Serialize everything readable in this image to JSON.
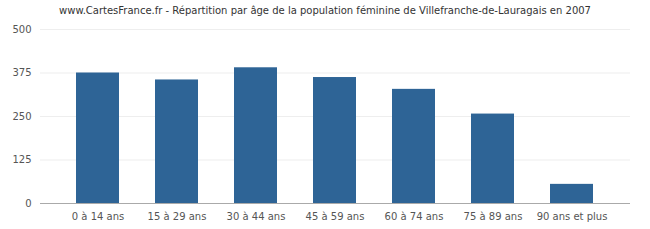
{
  "chart_data": {
    "type": "bar",
    "title": "www.CartesFrance.fr - Répartition par âge de la population féminine de Villefranche-de-Lauragais en 2007",
    "categories": [
      "0 à 14 ans",
      "15 à 29 ans",
      "30 à 44 ans",
      "45 à 59 ans",
      "60 à 74 ans",
      "75 à 89 ans",
      "90 ans et plus"
    ],
    "values": [
      375,
      355,
      390,
      362,
      328,
      257,
      55
    ],
    "color": "#2e6496",
    "ylim": [
      0,
      500
    ],
    "yticks": [
      0,
      125,
      250,
      375,
      500
    ],
    "grid": true
  }
}
